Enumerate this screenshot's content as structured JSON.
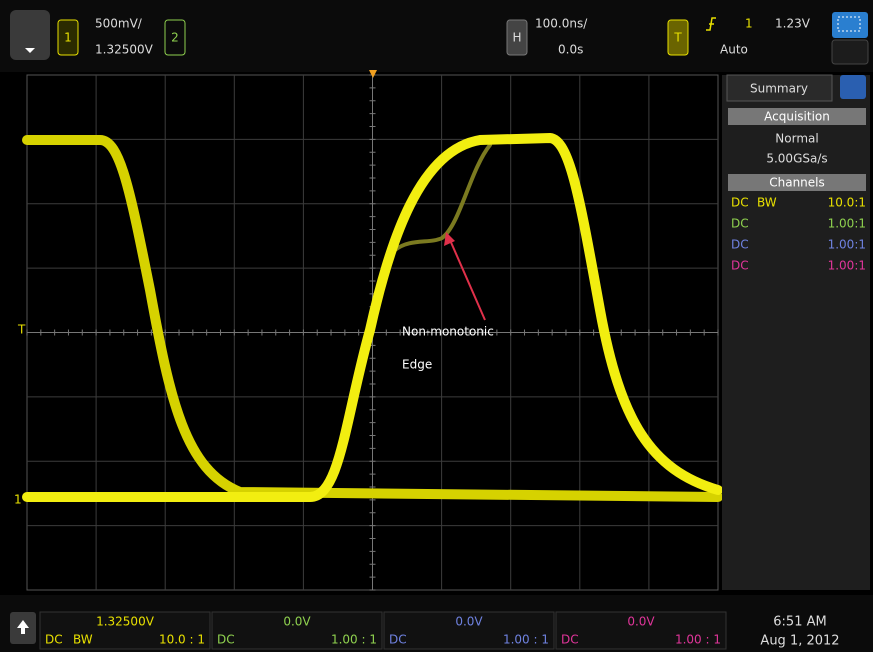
{
  "top_bar": {
    "ch1_label": "1",
    "ch1_scale": "500mV/",
    "ch1_offset": "1.32500V",
    "ch2_label": "2",
    "horiz_label": "H",
    "time_scale": "100.0ns/",
    "time_delay": "0.0s",
    "trig_label": "T",
    "trig_source": "1",
    "trig_level": "1.23V",
    "trig_mode": "Auto"
  },
  "screen": {
    "trig_marker": "T",
    "ground_marker": "1",
    "annotation": [
      "Non-monotonic",
      "Edge"
    ]
  },
  "side_panel": {
    "tab": "Summary",
    "acquisition": {
      "header": "Acquisition",
      "mode": "Normal",
      "rate": "5.00GSa/s"
    },
    "channels": {
      "header": "Channels",
      "rows": [
        [
          "DC",
          "BW",
          "10.0:1"
        ],
        [
          "DC",
          "",
          "1.00:1"
        ],
        [
          "DC",
          "",
          "1.00:1"
        ],
        [
          "DC",
          "",
          "1.00:1"
        ]
      ]
    }
  },
  "bottom_bar": {
    "channels": [
      {
        "offset": "1.32500V",
        "coupling": "DC",
        "bw": "BW",
        "probe": "10.0 : 1"
      },
      {
        "offset": "0.0V",
        "coupling": "DC",
        "probe": "1.00 : 1"
      },
      {
        "offset": "0.0V",
        "coupling": "DC",
        "probe": "1.00 : 1"
      },
      {
        "offset": "0.0V",
        "coupling": "DC",
        "probe": "1.00 : 1"
      }
    ],
    "time": "6:51 AM",
    "date": "Aug 1, 2012"
  }
}
